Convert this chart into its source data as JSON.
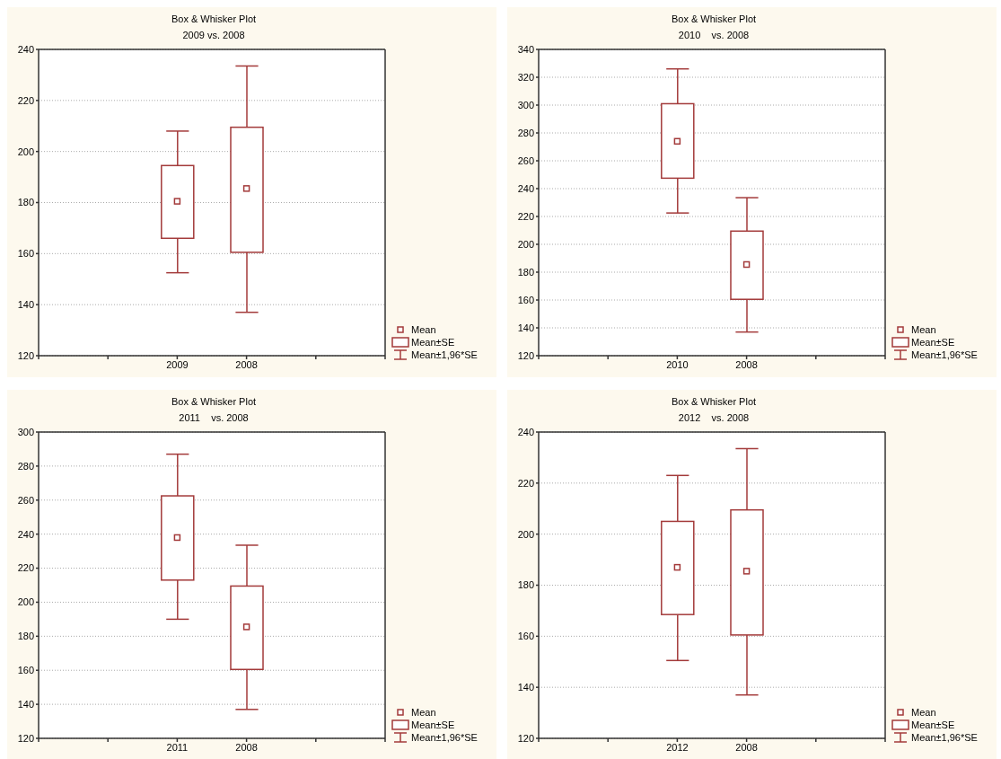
{
  "chart_data": [
    {
      "type": "box",
      "title": "Box & Whisker Plot",
      "subtitle": "2009 vs. 2008",
      "categories": [
        "2009",
        "2008"
      ],
      "series": [
        {
          "color": "#a33a3a",
          "boxes": [
            {
              "low": 152.5,
              "q1": 166,
              "mean": 180.5,
              "q3": 194.5,
              "high": 208
            },
            {
              "low": 137,
              "q1": 160.5,
              "mean": 185.5,
              "q3": 209.5,
              "high": 233.5
            }
          ]
        }
      ],
      "ylim": [
        120,
        240
      ],
      "yticks": [
        120,
        140,
        160,
        180,
        200,
        220,
        240
      ],
      "grid": "y",
      "marker": "square",
      "annotations": [
        "Mean",
        "Mean±SE",
        "Mean±1,96*SE"
      ]
    },
    {
      "type": "box",
      "title": "Box & Whisker Plot",
      "subtitle": "2010    vs. 2008",
      "categories": [
        "2010",
        "2008"
      ],
      "series": [
        {
          "color": "#a33a3a",
          "boxes": [
            {
              "low": 222.5,
              "q1": 247.5,
              "mean": 274,
              "q3": 301,
              "high": 326
            },
            {
              "low": 137,
              "q1": 160.5,
              "mean": 185.5,
              "q3": 209.5,
              "high": 233.5
            }
          ]
        }
      ],
      "ylim": [
        120,
        340
      ],
      "yticks": [
        120,
        140,
        160,
        180,
        200,
        220,
        240,
        260,
        280,
        300,
        320,
        340
      ],
      "grid": "y",
      "marker": "square",
      "annotations": [
        "Mean",
        "Mean±SE",
        "Mean±1,96*SE"
      ]
    },
    {
      "type": "box",
      "title": "Box & Whisker Plot",
      "subtitle": "2011    vs. 2008",
      "categories": [
        "2011",
        "2008"
      ],
      "series": [
        {
          "color": "#a33a3a",
          "boxes": [
            {
              "low": 190,
              "q1": 213,
              "mean": 238,
              "q3": 262.5,
              "high": 287
            },
            {
              "low": 137,
              "q1": 160.5,
              "mean": 185.5,
              "q3": 209.5,
              "high": 233.5
            }
          ]
        }
      ],
      "ylim": [
        120,
        300
      ],
      "yticks": [
        120,
        140,
        160,
        180,
        200,
        220,
        240,
        260,
        280,
        300
      ],
      "grid": "y",
      "marker": "square",
      "annotations": [
        "Mean",
        "Mean±SE",
        "Mean±1,96*SE"
      ]
    },
    {
      "type": "box",
      "title": "Box & Whisker Plot",
      "subtitle": "2012    vs. 2008",
      "categories": [
        "2012",
        "2008"
      ],
      "series": [
        {
          "color": "#a33a3a",
          "boxes": [
            {
              "low": 150.5,
              "q1": 168.5,
              "mean": 187,
              "q3": 205,
              "high": 223
            },
            {
              "low": 137,
              "q1": 160.5,
              "mean": 185.5,
              "q3": 209.5,
              "high": 233.5
            }
          ]
        }
      ],
      "ylim": [
        120,
        240
      ],
      "yticks": [
        120,
        140,
        160,
        180,
        200,
        220,
        240
      ],
      "grid": "y",
      "marker": "square",
      "annotations": [
        "Mean",
        "Mean±SE",
        "Mean±1,96*SE"
      ]
    }
  ]
}
